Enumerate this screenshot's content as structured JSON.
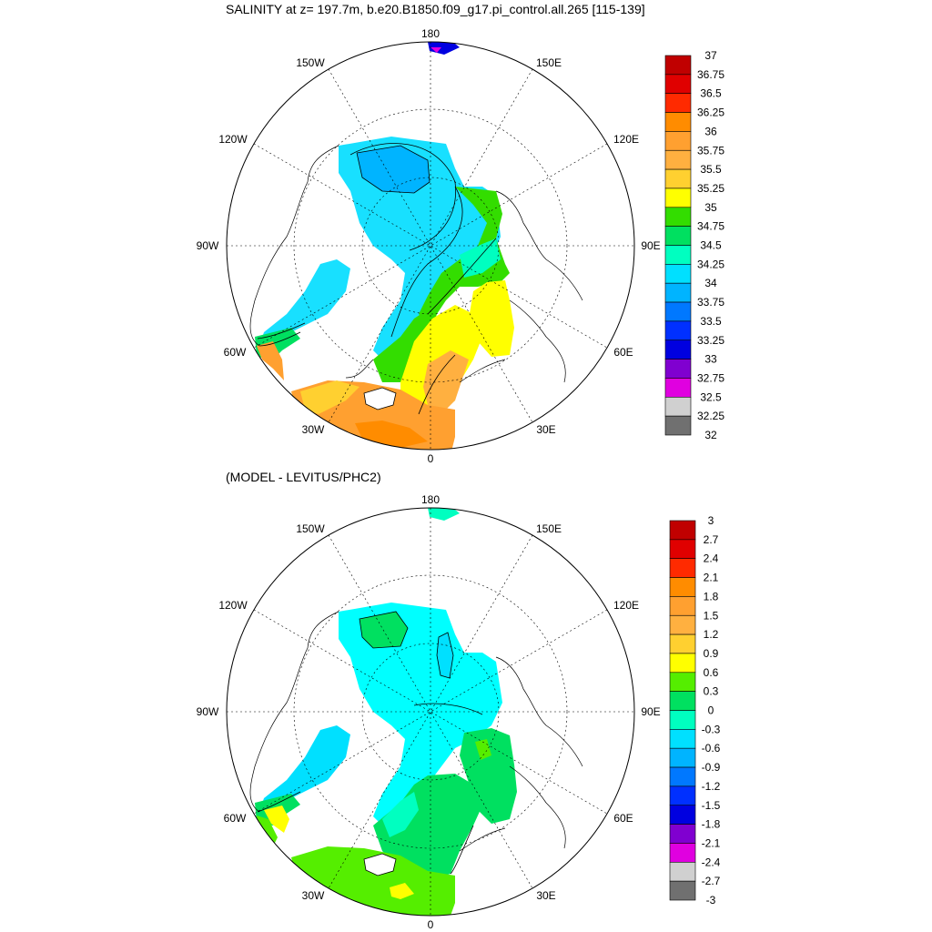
{
  "top_panel": {
    "title": "SALINITY at z= 197.7m, b.e20.B1850.f09_g17.pi_control.all.265 [115-139]",
    "lon_labels": [
      "180",
      "150W",
      "150E",
      "120W",
      "120E",
      "90W",
      "90E",
      "60W",
      "60E",
      "30W",
      "30E",
      "0"
    ],
    "colorbar": {
      "ticks": [
        "37",
        "36.75",
        "36.5",
        "36.25",
        "36",
        "35.75",
        "35.5",
        "35.25",
        "35",
        "34.75",
        "34.5",
        "34.25",
        "34",
        "33.75",
        "33.5",
        "33.25",
        "33",
        "32.75",
        "32.5",
        "32.25",
        "32"
      ],
      "colors": [
        "#c00000",
        "#e00000",
        "#ff2a00",
        "#ff8c00",
        "#ffa030",
        "#ffb040",
        "#ffd030",
        "#ffff00",
        "#33dd00",
        "#00e060",
        "#00ffc0",
        "#00e0ff",
        "#00b4ff",
        "#0078ff",
        "#0030ff",
        "#0000e0",
        "#8000d0",
        "#e000e0",
        "#d0d0d0",
        "#707070"
      ]
    }
  },
  "bottom_panel": {
    "title": "(MODEL - LEVITUS/PHC2)",
    "lon_labels": [
      "180",
      "150W",
      "150E",
      "120W",
      "120E",
      "90W",
      "90E",
      "60W",
      "60E",
      "30W",
      "30E",
      "0"
    ],
    "colorbar": {
      "ticks": [
        "3",
        "2.7",
        "2.4",
        "2.1",
        "1.8",
        "1.5",
        "1.2",
        "0.9",
        "0.6",
        "0.3",
        "0",
        "-0.3",
        "-0.6",
        "-0.9",
        "-1.2",
        "-1.5",
        "-1.8",
        "-2.1",
        "-2.4",
        "-2.7",
        "-3"
      ],
      "colors": [
        "#c00000",
        "#e00000",
        "#ff2a00",
        "#ff8c00",
        "#ffa030",
        "#ffb040",
        "#ffd030",
        "#ffff00",
        "#55ee00",
        "#00e060",
        "#00ffc0",
        "#00e0ff",
        "#00b4ff",
        "#0078ff",
        "#0030ff",
        "#0000e0",
        "#8000d0",
        "#e000e0",
        "#d0d0d0",
        "#707070"
      ]
    }
  },
  "colors": {
    "top_inner": "#18e0ff",
    "top_core": "#00b4ff",
    "top_atl_green": "#33dd00",
    "top_atl_teal": "#00ffc0",
    "top_atl_yellow": "#ffff00",
    "top_atl_orange": "#ffb040",
    "bottom_inner": "#00ffff",
    "bottom_atl_green": "#00e060",
    "bottom_atl_lime": "#55ee00",
    "bottom_yellow": "#ffff00"
  }
}
